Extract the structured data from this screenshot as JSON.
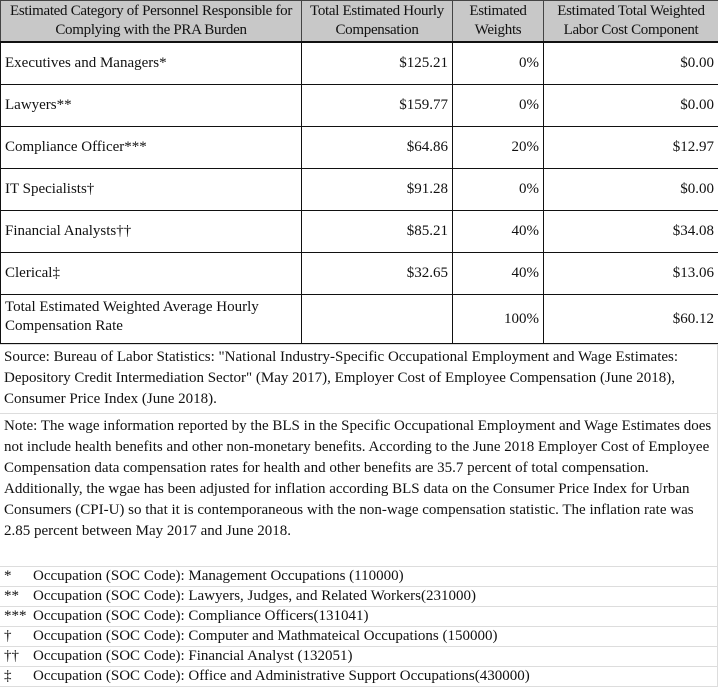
{
  "headers": [
    "Estimated Category of Personnel Responsible for Complying with the PRA Burden",
    "Total Estimated Hourly Compensation",
    "Estimated Weights",
    "Estimated Total Weighted Labor Cost Component"
  ],
  "rows": [
    {
      "category": "Executives and Managers*",
      "compensation": "$125.21",
      "weight": "0%",
      "cost": "$0.00"
    },
    {
      "category": "Lawyers**",
      "compensation": "$159.77",
      "weight": "0%",
      "cost": "$0.00"
    },
    {
      "category": "Compliance Officer***",
      "compensation": "$64.86",
      "weight": "20%",
      "cost": "$12.97"
    },
    {
      "category": "IT Specialists†",
      "compensation": "$91.28",
      "weight": "0%",
      "cost": "$0.00"
    },
    {
      "category": "Financial Analysts††",
      "compensation": "$85.21",
      "weight": "40%",
      "cost": "$34.08"
    },
    {
      "category": "Clerical‡",
      "compensation": "$32.65",
      "weight": "40%",
      "cost": "$13.06"
    }
  ],
  "total": {
    "label": "Total Estimated Weighted Average Hourly Compensation Rate",
    "compensation": "",
    "weight": "100%",
    "cost": "$60.12"
  },
  "source": "Source: Bureau of Labor Statistics: \"National Industry-Specific Occupational Employment and Wage Estimates: Depository Credit Intermediation Sector\" (May 2017), Employer Cost of Employee Compensation (June 2018), Consumer Price Index (June 2018).",
  "note": "Note: The wage information reported by the BLS in the Specific Occupational Employment and Wage Estimates does not include health benefits and other non-monetary benefits. According to the June 2018 Employer Cost of Employee Compensation data compensation rates for health and other benefits are 35.7 percent of total compensation. Additionally, the wgae has been adjusted for inflation according BLS data on the Consumer Price Index for Urban Consumers (CPI-U) so that it is contemporaneous with the non-wage compensation statistic. The inflation rate was 2.85 percent between May 2017 and June 2018.",
  "footnotes": [
    {
      "symbol": "*",
      "text": "Occupation (SOC Code): Management Occupations (110000)"
    },
    {
      "symbol": "**",
      "text": "Occupation (SOC Code): Lawyers, Judges, and Related Workers(231000)"
    },
    {
      "symbol": "***",
      "text": "Occupation (SOC Code): Compliance Officers(131041)"
    },
    {
      "symbol": "†",
      "text": "Occupation (SOC Code): Computer and Mathmateical Occupations (150000)"
    },
    {
      "symbol": "††",
      "text": "Occupation (SOC Code): Financial Analyst (132051)"
    },
    {
      "symbol": "‡",
      "text": "Occupation (SOC Code): Office and Administrative Support Occupations(430000)"
    }
  ]
}
